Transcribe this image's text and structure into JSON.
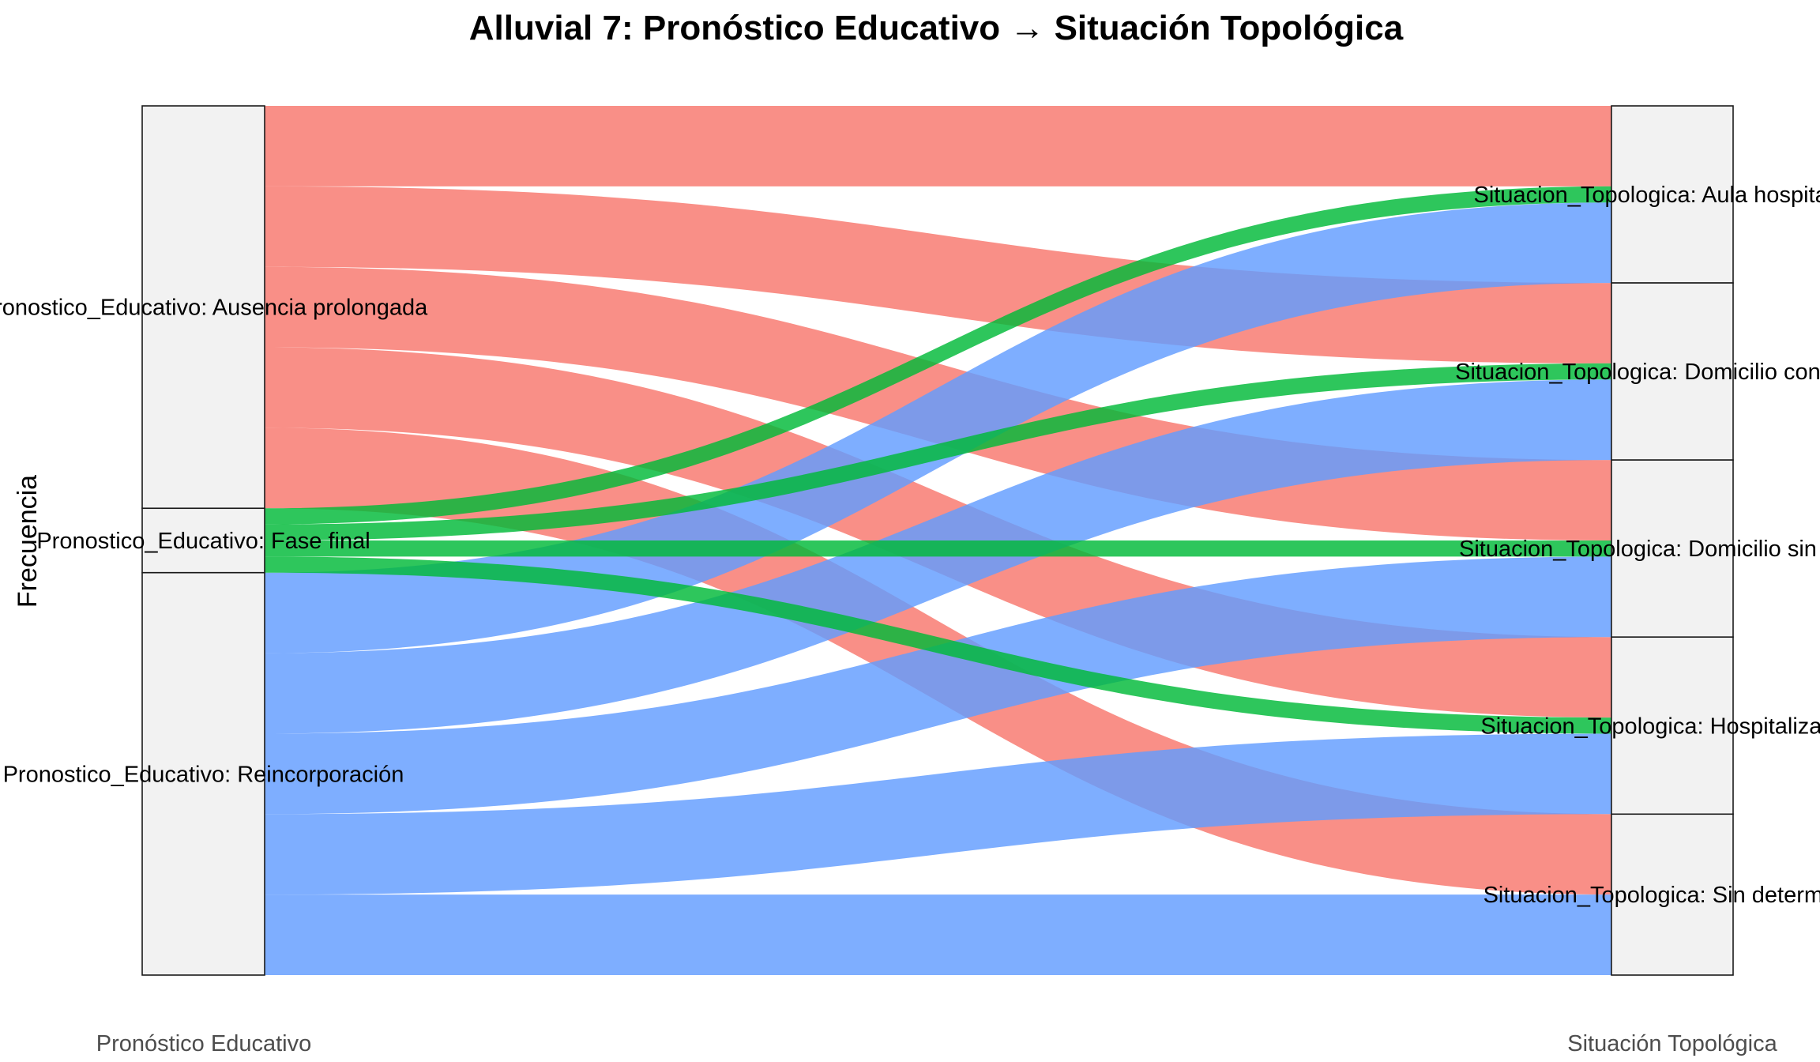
{
  "chart_data": {
    "type": "alluvial",
    "title": "Alluvial 7: Pronóstico Educativo → Situación Topológica",
    "ylabel": "Frecuencia",
    "axes": [
      "Pronóstico Educativo",
      "Situación Topológica"
    ],
    "source_nodes": [
      {
        "label": "Pronostico_Educativo: Ausencia prolongada",
        "value": 50,
        "color": "#f8766d"
      },
      {
        "label": "Pronostico_Educativo: Fase final",
        "value": 8,
        "color": "#00ba38"
      },
      {
        "label": "Pronostico_Educativo: Reincorporación",
        "value": 50,
        "color": "#619cff"
      }
    ],
    "target_nodes": [
      {
        "label": "Situacion_Topologica: Aula hospitalaria",
        "value": 22
      },
      {
        "label": "Situacion_Topologica: Domicilio con apoyo",
        "value": 22
      },
      {
        "label": "Situacion_Topologica: Domicilio sin apoyo",
        "value": 22
      },
      {
        "label": "Situacion_Topologica: Hospitalización",
        "value": 22
      },
      {
        "label": "Situacion_Topologica: Sin determinar",
        "value": 20
      }
    ],
    "flows": [
      {
        "source": 0,
        "target": 0,
        "value": 10
      },
      {
        "source": 0,
        "target": 1,
        "value": 10
      },
      {
        "source": 0,
        "target": 2,
        "value": 10
      },
      {
        "source": 0,
        "target": 3,
        "value": 10
      },
      {
        "source": 0,
        "target": 4,
        "value": 10
      },
      {
        "source": 1,
        "target": 0,
        "value": 2
      },
      {
        "source": 1,
        "target": 1,
        "value": 2
      },
      {
        "source": 1,
        "target": 2,
        "value": 2
      },
      {
        "source": 1,
        "target": 3,
        "value": 2
      },
      {
        "source": 2,
        "target": 0,
        "value": 10
      },
      {
        "source": 2,
        "target": 1,
        "value": 10
      },
      {
        "source": 2,
        "target": 2,
        "value": 10
      },
      {
        "source": 2,
        "target": 3,
        "value": 10
      },
      {
        "source": 2,
        "target": 4,
        "value": 10
      }
    ]
  }
}
